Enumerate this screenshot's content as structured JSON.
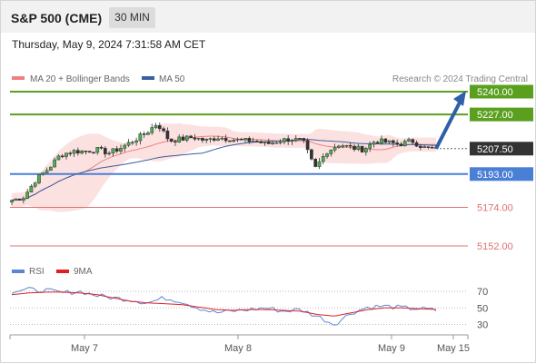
{
  "header": {
    "title": "S&P 500 (CME)",
    "timeframe": "30 MIN"
  },
  "timestamp": "Thursday, May 9, 2024 7:31:58 AM CET",
  "legend": {
    "ma20_label": "MA 20 + Bollinger Bands",
    "ma50_label": "MA 50",
    "credit": "Research © 2024 Trading Central"
  },
  "rsi_legend": {
    "rsi_label": "RSI",
    "ma_label": "9MA"
  },
  "colors": {
    "resistance": "#5aa01e",
    "support": "#4a7fd6",
    "lowlevel": "#e07070",
    "arrow": "#2e5fa8",
    "current": "#333333",
    "ma20": "#f08080",
    "ma50": "#3a5fa0",
    "rsi": "#5a86d6",
    "rsi_ma": "#e02020"
  },
  "chart_data": [
    {
      "type": "candlestick",
      "title": "",
      "x_labels": [
        "May 7",
        "May 8",
        "May 9",
        "May 15"
      ],
      "ylim": [
        5145,
        5247
      ],
      "series": [
        {
          "name": "MA 20 + Bollinger Bands"
        },
        {
          "name": "MA 50"
        }
      ],
      "close_profile": [
        5178,
        5180,
        5190,
        5196,
        5204,
        5206,
        5206,
        5207,
        5205,
        5208,
        5212,
        5216,
        5222,
        5212,
        5213,
        5214,
        5212,
        5214,
        5213,
        5212,
        5212,
        5210,
        5212,
        5213,
        5212,
        5196,
        5206,
        5210,
        5208,
        5207,
        5212,
        5211,
        5210,
        5212,
        5208,
        5207
      ],
      "levels": [
        {
          "value": "5240.00",
          "kind": "resistance"
        },
        {
          "value": "5227.00",
          "kind": "resistance"
        },
        {
          "value": "5207.50",
          "kind": "current"
        },
        {
          "value": "5193.00",
          "kind": "support"
        },
        {
          "value": "5174.00",
          "kind": "low"
        },
        {
          "value": "5152.00",
          "kind": "low"
        }
      ],
      "projection": {
        "from": 5207.5,
        "to": 5240
      }
    },
    {
      "type": "line",
      "title": "",
      "ylim": [
        20,
        80
      ],
      "y_ticks": [
        "70",
        "50",
        "30"
      ],
      "series": [
        {
          "name": "RSI",
          "values": [
            70,
            72,
            71,
            68,
            70,
            65,
            62,
            60,
            56,
            62,
            58,
            50,
            44,
            46,
            48,
            50,
            46,
            48,
            40,
            30,
            44,
            51,
            52,
            50,
            49,
            47
          ]
        },
        {
          "name": "9MA",
          "values": [
            66,
            68,
            69,
            69,
            68,
            66,
            62,
            58,
            56,
            55,
            54,
            51,
            48,
            47,
            48,
            48,
            47,
            46,
            42,
            40,
            44,
            48,
            50,
            50,
            49,
            48
          ]
        }
      ]
    }
  ]
}
